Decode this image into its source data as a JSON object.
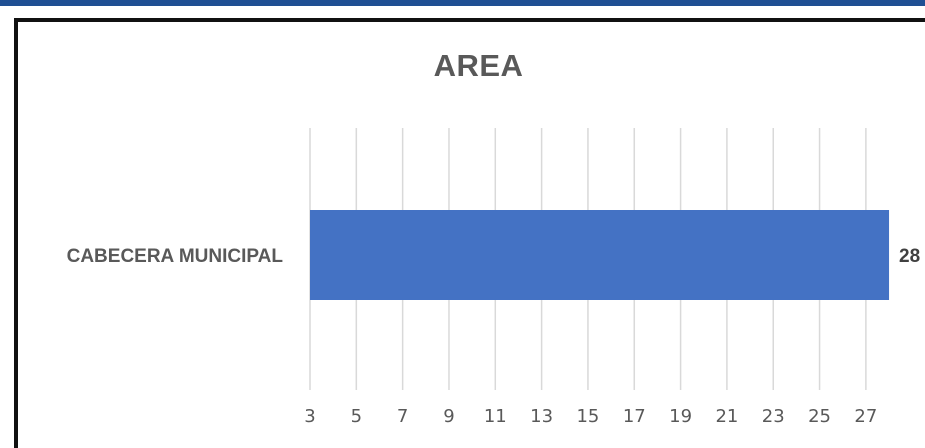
{
  "chart_data": {
    "type": "bar",
    "orientation": "horizontal",
    "title": "AREA",
    "categories": [
      "CABECERA MUNICIPAL"
    ],
    "values": [
      28
    ],
    "data_labels": [
      "28"
    ],
    "xlabel": "",
    "ylabel": "",
    "xlim": [
      3,
      28.3
    ],
    "x_ticks": [
      "3",
      "5",
      "7",
      "9",
      "11",
      "13",
      "15",
      "17",
      "19",
      "21",
      "23",
      "25",
      "27"
    ],
    "grid": "vertical",
    "legend": "none",
    "colors": {
      "bar": "#4472c4",
      "gridline": "#d9d9d9",
      "text": "#595959",
      "frame": "#111111",
      "top_strip": "#1f4f93"
    }
  }
}
